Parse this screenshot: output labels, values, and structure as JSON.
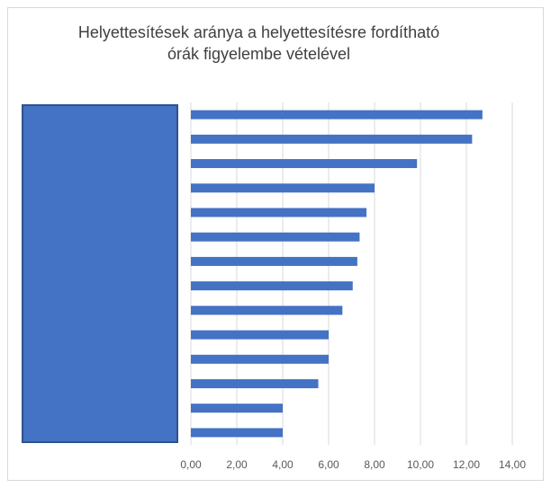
{
  "chart_data": {
    "type": "bar",
    "orientation": "horizontal",
    "title_lines": [
      "Helyettesítések aránya a helyettesítésre fordítható",
      "órák figyelembe vételével"
    ],
    "categories": [
      "",
      "",
      "",
      "",
      "",
      "",
      "",
      "",
      "",
      "",
      "",
      "",
      "",
      ""
    ],
    "values": [
      12.7,
      12.25,
      9.85,
      8.0,
      7.65,
      7.35,
      7.25,
      7.05,
      6.6,
      6.0,
      6.0,
      5.55,
      4.0,
      4.0
    ],
    "xlim": [
      0,
      14
    ],
    "xticks": [
      "0,00",
      "2,00",
      "4,00",
      "6,00",
      "8,00",
      "10,00",
      "12,00",
      "14,00"
    ],
    "grid": true,
    "bar_color": "#4472C4",
    "label_mask_color": "#4472C4",
    "label_mask_border": "#2F528F"
  }
}
